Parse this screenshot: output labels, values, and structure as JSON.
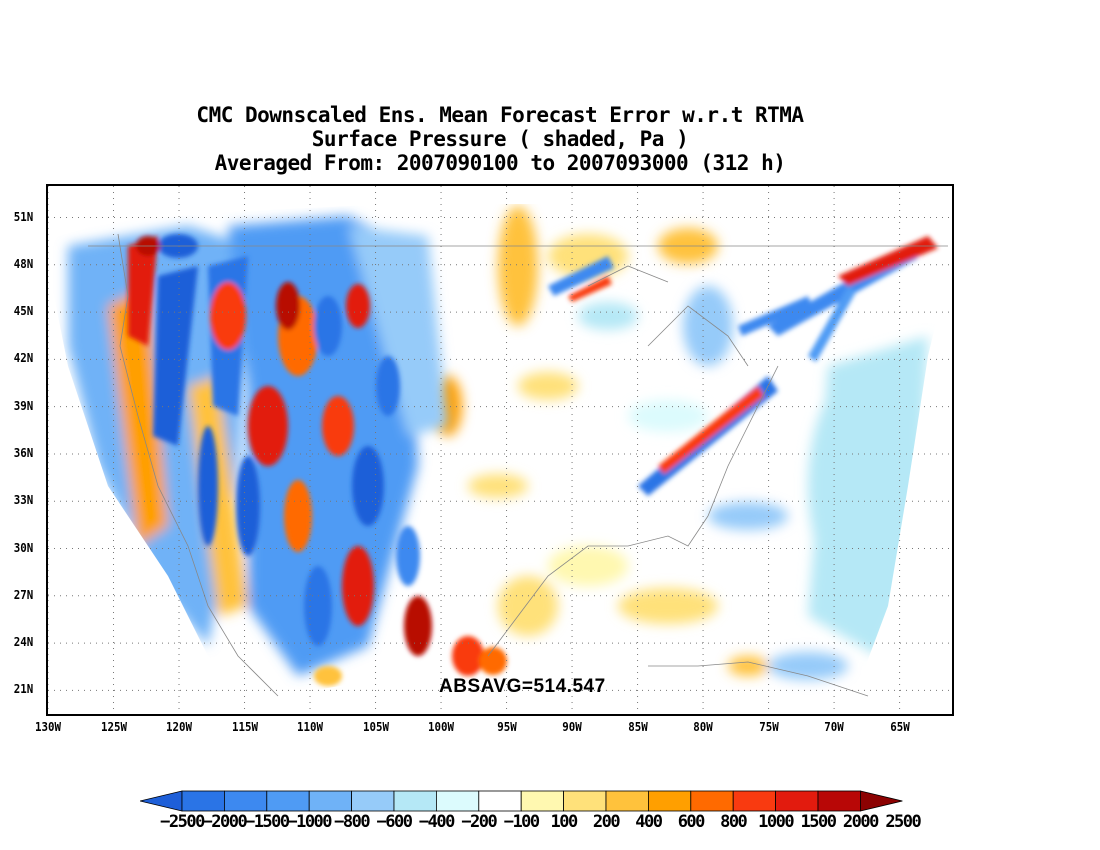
{
  "title": {
    "line1": "CMC Downscaled Ens. Mean Forecast Error w.r.t RTMA",
    "line2": "Surface Pressure ( shaded, Pa )",
    "line3": "Averaged From: 2007090100 to 2007093000 (312 h)"
  },
  "annotation": "ABSAVG=514.547",
  "map": {
    "type": "shaded-field-map",
    "region": "Continental United States",
    "lon_range": [
      -130,
      -61
    ],
    "lat_range": [
      19.5,
      53
    ],
    "lat_labels": [
      "51N",
      "48N",
      "45N",
      "42N",
      "39N",
      "36N",
      "33N",
      "30N",
      "27N",
      "24N",
      "21N"
    ],
    "lon_labels": [
      "130W",
      "125W",
      "120W",
      "115W",
      "110W",
      "105W",
      "100W",
      "95W",
      "90W",
      "85W",
      "80W",
      "75W",
      "70W",
      "65W"
    ],
    "grid": true
  },
  "colorbar": {
    "labels": [
      "-2500",
      "-2000",
      "-1500",
      "-1000",
      "-800",
      "-600",
      "-400",
      "-200",
      "-100",
      "100",
      "200",
      "400",
      "600",
      "800",
      "1000",
      "1500",
      "2000",
      "2500"
    ],
    "colors": [
      "#1e5fd8",
      "#2a74e6",
      "#3d89f0",
      "#4f9bf4",
      "#6fb2f7",
      "#96cbf9",
      "#b5e8f6",
      "#dcfbfd",
      "#ffffff",
      "#fff8b0",
      "#ffe17a",
      "#ffc23c",
      "#ff9f00",
      "#ff6a00",
      "#f93a10",
      "#e21b0e",
      "#b80706",
      "#8c0202"
    ]
  }
}
